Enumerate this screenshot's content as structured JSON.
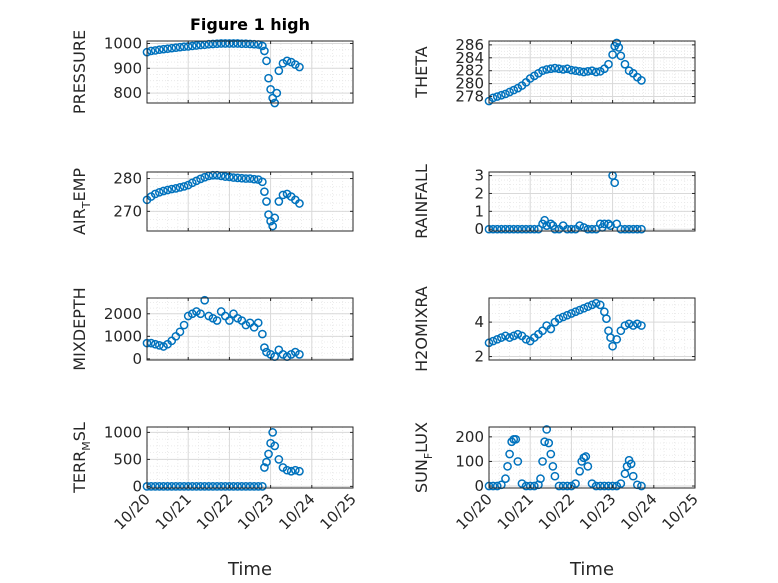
{
  "figure_title": "Figure 1 high",
  "style": {
    "marker_color": "#0072BD",
    "axis_color": "#262626",
    "grid_color": "#d9d9d9"
  },
  "chart_data": [
    {
      "type": "scatter",
      "ylabel": "PRESSURE",
      "ylabel_sub": "",
      "title": "Figure 1 high",
      "xlim": [
        0,
        5
      ],
      "ylim": [
        760,
        1010
      ],
      "yticks": [
        800,
        900,
        1000
      ],
      "xticks": [
        0,
        1,
        2,
        3,
        4,
        5
      ],
      "xticklabels": [
        "10/20",
        "10/21",
        "10/22",
        "10/23",
        "10/24",
        "10/25"
      ],
      "xticklabels_visible": false,
      "xlabel": "",
      "series": [
        {
          "x": [
            0,
            0.1,
            0.2,
            0.3,
            0.4,
            0.5,
            0.6,
            0.7,
            0.8,
            0.9,
            1.0,
            1.1,
            1.2,
            1.3,
            1.4,
            1.5,
            1.6,
            1.7,
            1.8,
            1.9,
            2.0,
            2.1,
            2.2,
            2.3,
            2.4,
            2.5,
            2.6,
            2.7,
            2.8,
            2.85,
            2.9,
            2.95,
            3.0,
            3.05,
            3.1,
            3.15,
            3.2,
            3.3,
            3.4,
            3.5,
            3.6,
            3.7
          ],
          "y": [
            965,
            970,
            972,
            975,
            977,
            979,
            981,
            983,
            985,
            987,
            988,
            990,
            992,
            994,
            995,
            997,
            998,
            999,
            1000,
            1000,
            1000,
            1000,
            1000,
            999,
            999,
            998,
            997,
            996,
            990,
            970,
            930,
            860,
            815,
            780,
            760,
            800,
            890,
            920,
            930,
            925,
            915,
            905
          ]
        }
      ]
    },
    {
      "type": "scatter",
      "ylabel": "THETA",
      "ylabel_sub": "",
      "xlim": [
        0,
        5
      ],
      "ylim": [
        277,
        286.6
      ],
      "yticks": [
        278,
        280,
        282,
        284,
        286
      ],
      "xticks": [
        0,
        1,
        2,
        3,
        4,
        5
      ],
      "xticklabels": [
        "10/20",
        "10/21",
        "10/22",
        "10/23",
        "10/24",
        "10/25"
      ],
      "xticklabels_visible": false,
      "xlabel": "",
      "series": [
        {
          "x": [
            0,
            0.1,
            0.2,
            0.3,
            0.4,
            0.5,
            0.6,
            0.7,
            0.8,
            0.9,
            1.0,
            1.1,
            1.2,
            1.3,
            1.4,
            1.5,
            1.6,
            1.7,
            1.8,
            1.9,
            2.0,
            2.1,
            2.2,
            2.3,
            2.4,
            2.5,
            2.6,
            2.7,
            2.8,
            2.9,
            3.0,
            3.05,
            3.1,
            3.15,
            3.2,
            3.3,
            3.4,
            3.5,
            3.6,
            3.7
          ],
          "y": [
            277.3,
            277.8,
            278.0,
            278.2,
            278.4,
            278.7,
            279.0,
            279.3,
            279.7,
            280.2,
            280.8,
            281.2,
            281.6,
            282.0,
            282.2,
            282.3,
            282.4,
            282.3,
            282.2,
            282.3,
            282.1,
            282.0,
            281.9,
            281.8,
            281.9,
            282.0,
            281.8,
            281.9,
            282.3,
            283.0,
            284.5,
            285.8,
            286.3,
            285.6,
            284.3,
            283.0,
            282.0,
            281.6,
            281.0,
            280.5
          ]
        }
      ]
    },
    {
      "type": "scatter",
      "ylabel": "AIR",
      "ylabel_sub": "T",
      "ylabel_tail": "EMP",
      "xlim": [
        0,
        5
      ],
      "ylim": [
        264,
        282
      ],
      "yticks": [
        270,
        280
      ],
      "xticks": [
        0,
        1,
        2,
        3,
        4,
        5
      ],
      "xticklabels": [
        "10/20",
        "10/21",
        "10/22",
        "10/23",
        "10/24",
        "10/25"
      ],
      "xticklabels_visible": false,
      "xlabel": "",
      "series": [
        {
          "x": [
            0,
            0.1,
            0.2,
            0.3,
            0.4,
            0.5,
            0.6,
            0.7,
            0.8,
            0.9,
            1.0,
            1.1,
            1.2,
            1.3,
            1.4,
            1.5,
            1.6,
            1.7,
            1.8,
            1.9,
            2.0,
            2.1,
            2.2,
            2.3,
            2.4,
            2.5,
            2.6,
            2.7,
            2.8,
            2.85,
            2.9,
            2.95,
            3.0,
            3.05,
            3.1,
            3.2,
            3.3,
            3.4,
            3.5,
            3.6,
            3.7
          ],
          "y": [
            273.5,
            274.5,
            275.3,
            275.8,
            276.2,
            276.5,
            276.8,
            277.0,
            277.3,
            277.6,
            278.0,
            278.7,
            279.3,
            279.9,
            280.4,
            280.8,
            281.0,
            281.0,
            280.8,
            280.6,
            280.5,
            280.3,
            280.2,
            280.1,
            280.0,
            280.0,
            279.8,
            279.7,
            279.0,
            276.0,
            273.0,
            269.0,
            267.0,
            265.5,
            268.0,
            273.0,
            275.0,
            275.3,
            274.5,
            273.5,
            272.4
          ]
        }
      ]
    },
    {
      "type": "scatter",
      "ylabel": "RAINFALL",
      "ylabel_sub": "",
      "xlim": [
        0,
        5
      ],
      "ylim": [
        -0.1,
        3.2
      ],
      "yticks": [
        0,
        1,
        2,
        3
      ],
      "xticks": [
        0,
        1,
        2,
        3,
        4,
        5
      ],
      "xticklabels": [
        "10/20",
        "10/21",
        "10/22",
        "10/23",
        "10/24",
        "10/25"
      ],
      "xticklabels_visible": false,
      "xlabel": "",
      "series": [
        {
          "x": [
            0,
            0.1,
            0.2,
            0.3,
            0.4,
            0.5,
            0.6,
            0.7,
            0.8,
            0.9,
            1.0,
            1.1,
            1.2,
            1.3,
            1.35,
            1.4,
            1.5,
            1.55,
            1.6,
            1.7,
            1.8,
            1.9,
            2.0,
            2.1,
            2.2,
            2.3,
            2.4,
            2.5,
            2.6,
            2.7,
            2.75,
            2.8,
            2.9,
            2.95,
            3.0,
            3.05,
            3.1,
            3.2,
            3.3,
            3.4,
            3.5,
            3.6,
            3.7
          ],
          "y": [
            0,
            0,
            0,
            0,
            0,
            0,
            0,
            0,
            0,
            0,
            0,
            0,
            0,
            0.3,
            0.5,
            0.2,
            0.3,
            0.2,
            0,
            0,
            0.2,
            0,
            0,
            0,
            0.2,
            0.1,
            0,
            0,
            0,
            0.3,
            0.1,
            0.3,
            0.3,
            0.2,
            3.0,
            2.6,
            0.3,
            0,
            0,
            0,
            0,
            0,
            0
          ]
        }
      ]
    },
    {
      "type": "scatter",
      "ylabel": "MIXDEPTH",
      "ylabel_sub": "",
      "xlim": [
        0,
        5
      ],
      "ylim": [
        -50,
        2700
      ],
      "yticks": [
        0,
        1000,
        2000
      ],
      "xticks": [
        0,
        1,
        2,
        3,
        4,
        5
      ],
      "xticklabels": [
        "10/20",
        "10/21",
        "10/22",
        "10/23",
        "10/24",
        "10/25"
      ],
      "xticklabels_visible": false,
      "xlabel": "",
      "series": [
        {
          "x": [
            0,
            0.1,
            0.2,
            0.3,
            0.4,
            0.5,
            0.6,
            0.7,
            0.8,
            0.9,
            1.0,
            1.1,
            1.2,
            1.3,
            1.4,
            1.5,
            1.6,
            1.7,
            1.8,
            1.9,
            2.0,
            2.1,
            2.2,
            2.3,
            2.4,
            2.5,
            2.6,
            2.7,
            2.8,
            2.85,
            2.9,
            3.0,
            3.1,
            3.2,
            3.3,
            3.4,
            3.5,
            3.6,
            3.7
          ],
          "y": [
            700,
            700,
            650,
            600,
            550,
            650,
            800,
            1000,
            1200,
            1500,
            1900,
            2000,
            2100,
            2000,
            2600,
            1900,
            1800,
            1700,
            2100,
            1900,
            1700,
            2000,
            1800,
            1700,
            1500,
            1600,
            1400,
            1600,
            1100,
            500,
            300,
            200,
            100,
            400,
            200,
            100,
            200,
            300,
            200
          ]
        }
      ]
    },
    {
      "type": "scatter",
      "ylabel": "H2OMIXRA",
      "ylabel_sub": "",
      "xlim": [
        0,
        5
      ],
      "ylim": [
        1.8,
        5.4
      ],
      "yticks": [
        2,
        4
      ],
      "xticks": [
        0,
        1,
        2,
        3,
        4,
        5
      ],
      "xticklabels": [
        "10/20",
        "10/21",
        "10/22",
        "10/23",
        "10/24",
        "10/25"
      ],
      "xticklabels_visible": false,
      "xlabel": "",
      "series": [
        {
          "x": [
            0,
            0.1,
            0.2,
            0.3,
            0.4,
            0.5,
            0.6,
            0.7,
            0.8,
            0.9,
            1.0,
            1.1,
            1.2,
            1.3,
            1.4,
            1.5,
            1.6,
            1.7,
            1.8,
            1.9,
            2.0,
            2.1,
            2.2,
            2.3,
            2.4,
            2.5,
            2.6,
            2.7,
            2.8,
            2.85,
            2.9,
            2.95,
            3.0,
            3.1,
            3.2,
            3.3,
            3.4,
            3.5,
            3.6,
            3.7
          ],
          "y": [
            2.8,
            2.9,
            3.0,
            3.1,
            3.2,
            3.1,
            3.2,
            3.3,
            3.2,
            3.0,
            2.9,
            3.1,
            3.3,
            3.5,
            3.8,
            3.6,
            4.0,
            4.2,
            4.3,
            4.4,
            4.5,
            4.6,
            4.7,
            4.8,
            4.9,
            5.0,
            5.1,
            5.0,
            4.6,
            4.2,
            3.5,
            3.1,
            2.6,
            3.0,
            3.5,
            3.8,
            3.9,
            3.8,
            3.9,
            3.8
          ]
        }
      ]
    },
    {
      "type": "scatter",
      "ylabel": "TERR",
      "ylabel_sub": "M",
      "ylabel_tail": "SL",
      "xlim": [
        0,
        5
      ],
      "ylim": [
        -30,
        1100
      ],
      "yticks": [
        0,
        500,
        1000
      ],
      "xticks": [
        0,
        1,
        2,
        3,
        4,
        5
      ],
      "xticklabels": [
        "10/20",
        "10/21",
        "10/22",
        "10/23",
        "10/24",
        "10/25"
      ],
      "xticklabels_visible": true,
      "xlabel": "Time",
      "series": [
        {
          "x": [
            0,
            0.1,
            0.2,
            0.3,
            0.4,
            0.5,
            0.6,
            0.7,
            0.8,
            0.9,
            1.0,
            1.1,
            1.2,
            1.3,
            1.4,
            1.5,
            1.6,
            1.7,
            1.8,
            1.9,
            2.0,
            2.1,
            2.2,
            2.3,
            2.4,
            2.5,
            2.6,
            2.7,
            2.8,
            2.85,
            2.9,
            2.95,
            3.0,
            3.05,
            3.1,
            3.2,
            3.3,
            3.4,
            3.5,
            3.6,
            3.7
          ],
          "y": [
            0,
            0,
            0,
            0,
            0,
            0,
            0,
            0,
            0,
            0,
            0,
            0,
            0,
            0,
            0,
            0,
            0,
            0,
            0,
            0,
            0,
            0,
            0,
            0,
            0,
            0,
            0,
            0,
            0,
            350,
            450,
            600,
            800,
            1000,
            750,
            500,
            350,
            300,
            280,
            300,
            280
          ]
        }
      ]
    },
    {
      "type": "scatter",
      "ylabel": "SUN",
      "ylabel_sub": "F",
      "ylabel_tail": "LUX",
      "xlim": [
        0,
        5
      ],
      "ylim": [
        -8,
        240
      ],
      "yticks": [
        0,
        100,
        200
      ],
      "xticks": [
        0,
        1,
        2,
        3,
        4,
        5
      ],
      "xticklabels": [
        "10/20",
        "10/21",
        "10/22",
        "10/23",
        "10/24",
        "10/25"
      ],
      "xticklabels_visible": true,
      "xlabel": "Time",
      "series": [
        {
          "x": [
            0,
            0.1,
            0.2,
            0.3,
            0.4,
            0.45,
            0.5,
            0.55,
            0.6,
            0.65,
            0.7,
            0.8,
            0.9,
            1.0,
            1.1,
            1.2,
            1.25,
            1.3,
            1.35,
            1.4,
            1.45,
            1.5,
            1.55,
            1.6,
            1.7,
            1.8,
            1.9,
            2.0,
            2.1,
            2.2,
            2.25,
            2.3,
            2.35,
            2.4,
            2.5,
            2.6,
            2.7,
            2.8,
            2.9,
            3.0,
            3.1,
            3.2,
            3.3,
            3.35,
            3.4,
            3.45,
            3.5,
            3.6,
            3.7
          ],
          "y": [
            0,
            0,
            0,
            5,
            30,
            80,
            130,
            180,
            190,
            190,
            100,
            10,
            0,
            0,
            0,
            5,
            30,
            100,
            180,
            230,
            175,
            130,
            80,
            40,
            0,
            0,
            0,
            0,
            10,
            60,
            100,
            115,
            120,
            80,
            10,
            0,
            0,
            0,
            0,
            0,
            0,
            10,
            50,
            80,
            105,
            90,
            40,
            5,
            0
          ]
        }
      ]
    }
  ]
}
